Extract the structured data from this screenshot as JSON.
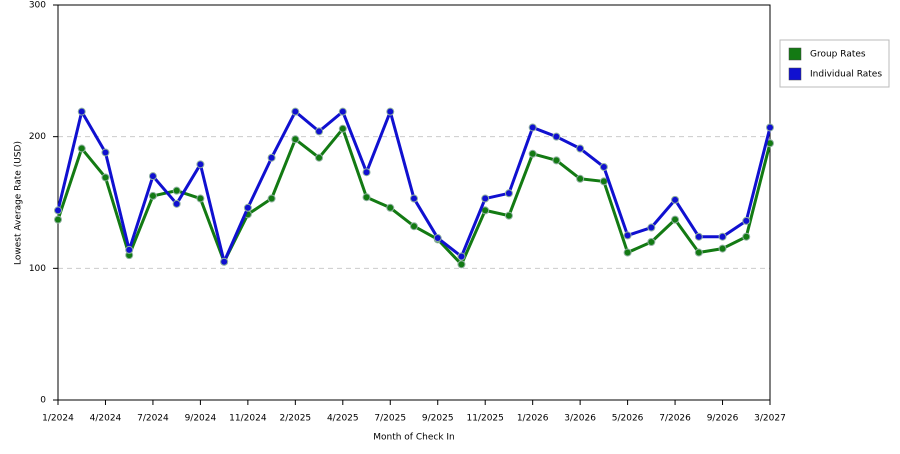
{
  "chart_data": {
    "type": "line",
    "x_label": "Month of Check In",
    "y_label": "Lowest Average Rate (USD)",
    "categories": [
      "1/2024",
      null,
      "4/2024",
      null,
      "7/2024",
      null,
      "9/2024",
      null,
      "11/2024",
      null,
      "2/2025",
      null,
      "4/2025",
      null,
      "7/2025",
      null,
      "9/2025",
      null,
      "11/2025",
      null,
      "1/2026",
      null,
      "3/2026",
      null,
      "5/2026",
      null,
      "7/2026",
      null,
      "9/2026",
      null,
      "3/2027"
    ],
    "series": [
      {
        "name": "Group Rates",
        "color": "#137a13",
        "values": [
          137,
          191,
          169,
          110,
          155,
          159,
          153,
          105,
          141,
          153,
          198,
          184,
          206,
          154,
          146,
          132,
          122,
          103,
          144,
          140,
          187,
          182,
          168,
          166,
          112,
          120,
          137,
          112,
          115,
          124,
          195
        ]
      },
      {
        "name": "Individual Rates",
        "color": "#1010d0",
        "values": [
          144,
          219,
          188,
          114,
          170,
          149,
          179,
          105,
          146,
          184,
          219,
          204,
          219,
          173,
          219,
          153,
          123,
          109,
          153,
          157,
          207,
          200,
          191,
          177,
          125,
          131,
          152,
          124,
          124,
          136,
          207
        ]
      }
    ],
    "ylim": [
      0,
      300
    ],
    "yticks": [
      0,
      100,
      200,
      300
    ],
    "grid": true,
    "legend": "right"
  }
}
